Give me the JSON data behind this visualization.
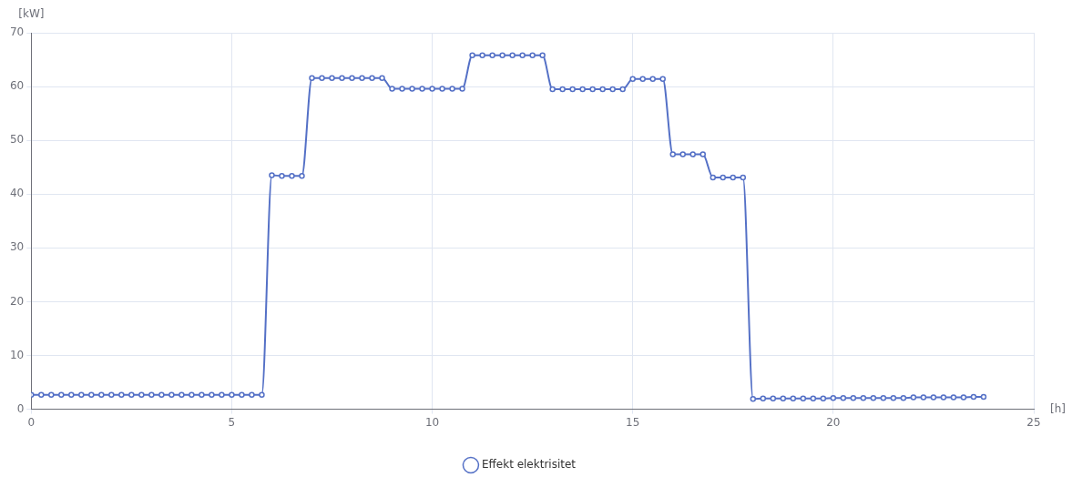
{
  "chart_data": {
    "type": "line",
    "xlabel": "[h]",
    "ylabel": "[kW]",
    "x": [
      0,
      0.25,
      0.5,
      0.75,
      1,
      1.25,
      1.5,
      1.75,
      2,
      2.25,
      2.5,
      2.75,
      3,
      3.25,
      3.5,
      3.75,
      4,
      4.25,
      4.5,
      4.75,
      5,
      5.25,
      5.5,
      5.75,
      6,
      6.25,
      6.5,
      6.75,
      7,
      7.25,
      7.5,
      7.75,
      8,
      8.25,
      8.5,
      8.75,
      9,
      9.25,
      9.5,
      9.75,
      10,
      10.25,
      10.5,
      10.75,
      11,
      11.25,
      11.5,
      11.75,
      12,
      12.25,
      12.5,
      12.75,
      13,
      13.25,
      13.5,
      13.75,
      14,
      14.25,
      14.5,
      14.75,
      15,
      15.25,
      15.5,
      15.75,
      16,
      16.25,
      16.5,
      16.75,
      17,
      17.25,
      17.5,
      17.75,
      18,
      18.25,
      18.5,
      18.75,
      19,
      19.25,
      19.5,
      19.75,
      20,
      20.25,
      20.5,
      20.75,
      21,
      21.25,
      21.5,
      21.75,
      22,
      22.25,
      22.5,
      22.75,
      23,
      23.25,
      23.5,
      23.75
    ],
    "series": [
      {
        "name": "Effekt elektrisitet",
        "color": "#5470c6",
        "values": [
          2.7,
          2.7,
          2.7,
          2.7,
          2.7,
          2.7,
          2.7,
          2.7,
          2.7,
          2.7,
          2.7,
          2.7,
          2.7,
          2.7,
          2.7,
          2.7,
          2.7,
          2.7,
          2.7,
          2.7,
          2.7,
          2.7,
          2.7,
          2.7,
          43.5,
          43.4,
          43.4,
          43.4,
          61.6,
          61.6,
          61.6,
          61.6,
          61.6,
          61.6,
          61.6,
          61.6,
          59.6,
          59.6,
          59.6,
          59.6,
          59.6,
          59.6,
          59.6,
          59.6,
          65.8,
          65.8,
          65.8,
          65.8,
          65.8,
          65.8,
          65.8,
          65.8,
          59.5,
          59.5,
          59.5,
          59.5,
          59.5,
          59.5,
          59.5,
          59.5,
          61.4,
          61.4,
          61.4,
          61.4,
          47.4,
          47.4,
          47.4,
          47.4,
          43.1,
          43.1,
          43.1,
          43.1,
          1.9,
          2.0,
          2.0,
          2.0,
          2.0,
          2.0,
          2.0,
          2.0,
          2.1,
          2.1,
          2.1,
          2.1,
          2.1,
          2.1,
          2.1,
          2.1,
          2.2,
          2.2,
          2.2,
          2.2,
          2.2,
          2.2,
          2.3,
          2.3
        ]
      }
    ],
    "xlim": [
      0,
      25
    ],
    "xticks": [
      0,
      5,
      10,
      15,
      20,
      25
    ],
    "ylim": [
      0,
      70
    ],
    "yticks": [
      0,
      10,
      20,
      30,
      40,
      50,
      60,
      70
    ],
    "grid": true,
    "legend": "bottom",
    "marker": "circle",
    "line_style": "solid"
  }
}
